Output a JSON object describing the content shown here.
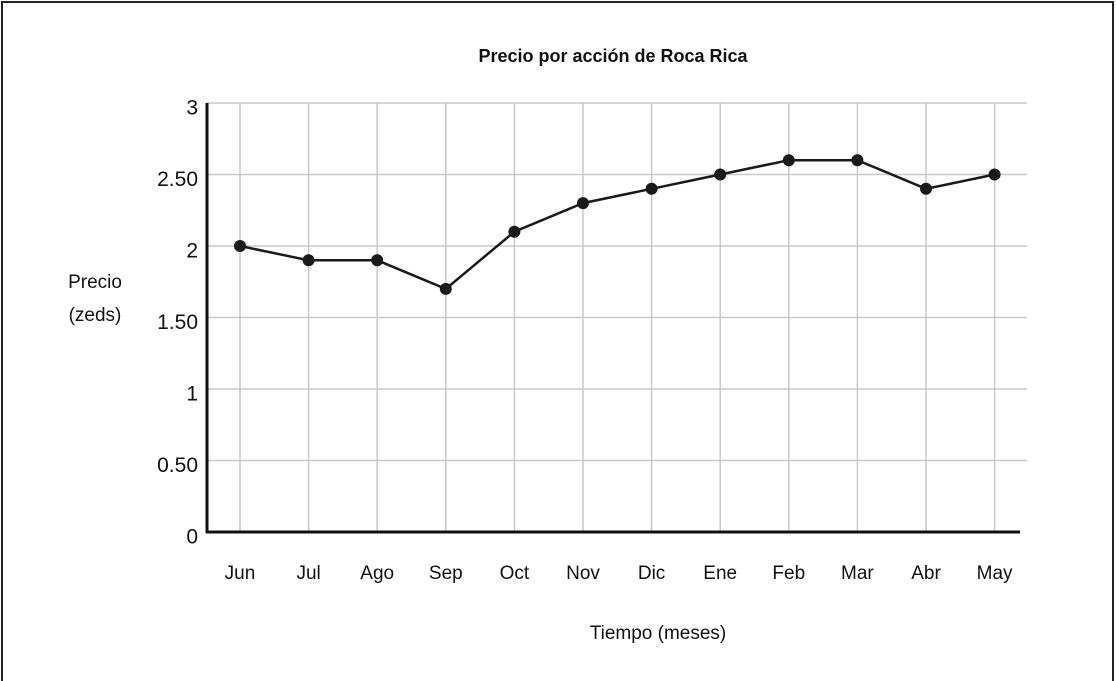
{
  "chart_data": {
    "type": "line",
    "title": "Precio por acción de Roca Rica",
    "xlabel": "Tiempo (meses)",
    "ylabel": [
      "Precio",
      "(zeds)"
    ],
    "categories": [
      "Jun",
      "Jul",
      "Ago",
      "Sep",
      "Oct",
      "Nov",
      "Dic",
      "Ene",
      "Feb",
      "Mar",
      "Abr",
      "May"
    ],
    "values": [
      2.0,
      1.9,
      1.9,
      1.7,
      2.1,
      2.3,
      2.4,
      2.5,
      2.6,
      2.6,
      2.4,
      2.5
    ],
    "color": "#1a1a1a",
    "ylim": [
      0,
      3
    ],
    "yticks": [
      0,
      {
        "value": 0.5,
        "label": "0.50"
      },
      1,
      {
        "value": 1.5,
        "label": "1.50"
      },
      2,
      {
        "value": 2.5,
        "label": "2.50"
      },
      3
    ],
    "grid": true
  }
}
